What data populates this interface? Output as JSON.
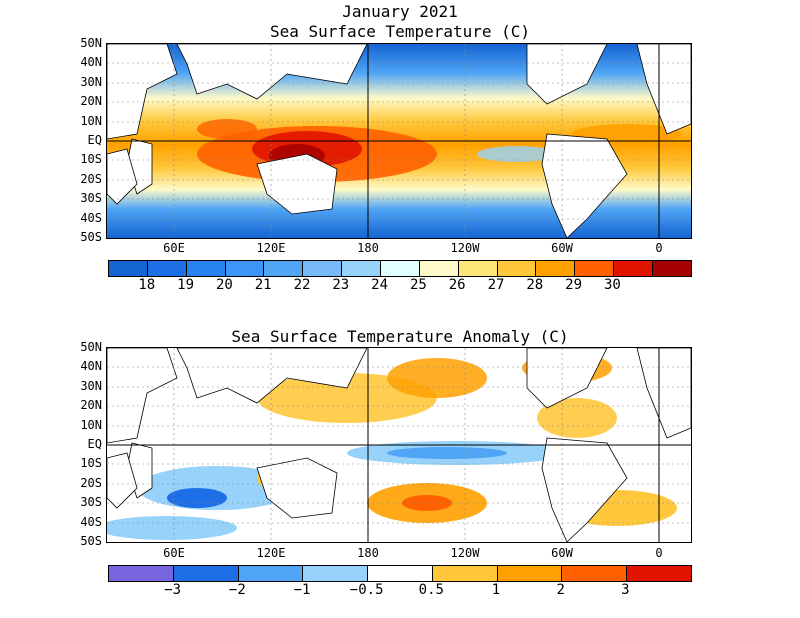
{
  "titles": {
    "line1": "January 2021",
    "line2": "Sea Surface Temperature (C)",
    "line3": "Sea Surface Temperature Anomaly (C)"
  },
  "lat_labels": [
    "50N",
    "40N",
    "30N",
    "20N",
    "10N",
    "EQ",
    "10S",
    "20S",
    "30S",
    "40S",
    "50S"
  ],
  "lon_labels": [
    "60E",
    "120E",
    "180",
    "120W",
    "60W",
    "0"
  ],
  "sst_colorbar": {
    "colors": [
      "#1464d2",
      "#1e6ee6",
      "#2882f0",
      "#3c96f5",
      "#50a5f5",
      "#78b9fa",
      "#96d2fa",
      "#e1ffff",
      "#fffac8",
      "#ffe678",
      "#ffc83c",
      "#ffa000",
      "#ff6000",
      "#e11400",
      "#a50000"
    ],
    "labels": [
      "18",
      "19",
      "20",
      "21",
      "22",
      "23",
      "24",
      "25",
      "26",
      "27",
      "28",
      "29",
      "30"
    ]
  },
  "anom_colorbar": {
    "colors": [
      "#7864dc",
      "#1e6ee6",
      "#50a5f5",
      "#96d2fa",
      "#ffffff",
      "#ffc83c",
      "#ffa000",
      "#ff6000",
      "#e11400"
    ],
    "labels": [
      "−3",
      "−2",
      "−1",
      "−0.5",
      "0.5",
      "1",
      "2",
      "3"
    ]
  }
}
